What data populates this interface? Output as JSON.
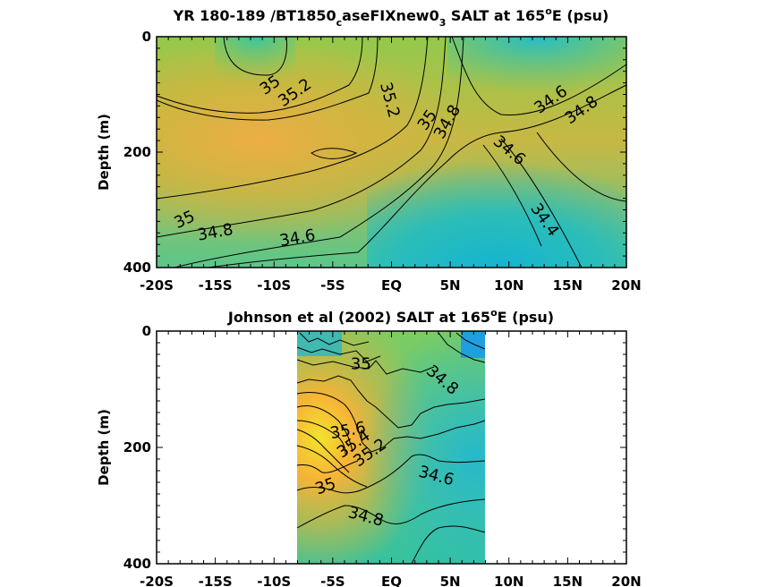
{
  "chart_data": [
    {
      "type": "contour",
      "title_main": "YR 180-189 /BT1850",
      "title_sub1": "c",
      "title_mid": "aseFIXnew0",
      "title_sub2": "3",
      "title_tail": " SALT at 165",
      "title_sup": "o",
      "title_end": "E (psu)",
      "ylabel": "Depth (m)",
      "x_ticks": [
        "-20S",
        "-15S",
        "-10S",
        "-5S",
        "EQ",
        "5N",
        "10N",
        "15N",
        "20N"
      ],
      "x_tick_values": [
        -20,
        -15,
        -10,
        -5,
        0,
        5,
        10,
        15,
        20
      ],
      "y_ticks": [
        "0",
        "200",
        "400"
      ],
      "y_tick_values": [
        0,
        200,
        400
      ],
      "xlim": [
        -20,
        20
      ],
      "ylim": [
        400,
        0
      ],
      "data_xrange": [
        -20,
        20
      ],
      "contour_labels": [
        {
          "text": "35",
          "x": -10.3,
          "y": 85,
          "angle": -35
        },
        {
          "text": "35.2",
          "x": -8.2,
          "y": 98,
          "angle": -35
        },
        {
          "text": "35.2",
          "x": -0.2,
          "y": 110,
          "angle": 75
        },
        {
          "text": "35",
          "x": 3.1,
          "y": 145,
          "angle": -55
        },
        {
          "text": "34.8",
          "x": 4.8,
          "y": 148,
          "angle": -60
        },
        {
          "text": "34.6",
          "x": 13.6,
          "y": 110,
          "angle": -35
        },
        {
          "text": "34.8",
          "x": 16.2,
          "y": 128,
          "angle": -35
        },
        {
          "text": "34.6",
          "x": 10.0,
          "y": 198,
          "angle": 40
        },
        {
          "text": "35",
          "x": -17.6,
          "y": 318,
          "angle": -25
        },
        {
          "text": "34.8",
          "x": -15.0,
          "y": 340,
          "angle": -10
        },
        {
          "text": "34.6",
          "x": -8.0,
          "y": 350,
          "angle": -10
        },
        {
          "text": "34.4",
          "x": 13.0,
          "y": 318,
          "angle": 55
        }
      ]
    },
    {
      "type": "contour",
      "title_main": "Johnson et al (2002) SALT at 165",
      "title_sup": "o",
      "title_end": "E (psu)",
      "ylabel": "Depth (m)",
      "x_ticks": [
        "-20S",
        "-15S",
        "-10S",
        "-5S",
        "EQ",
        "5N",
        "10N",
        "15N",
        "20N"
      ],
      "x_tick_values": [
        -20,
        -15,
        -10,
        -5,
        0,
        5,
        10,
        15,
        20
      ],
      "y_ticks": [
        "0",
        "200",
        "400"
      ],
      "y_tick_values": [
        0,
        200,
        400
      ],
      "xlim": [
        -20,
        20
      ],
      "ylim": [
        400,
        0
      ],
      "data_xrange": [
        -8,
        8
      ],
      "contour_labels": [
        {
          "text": "35",
          "x": -2.6,
          "y": 58,
          "angle": 0
        },
        {
          "text": "34.8",
          "x": 4.3,
          "y": 85,
          "angle": 40
        },
        {
          "text": "35.6",
          "x": -3.7,
          "y": 172,
          "angle": -10
        },
        {
          "text": "35.4",
          "x": -3.2,
          "y": 195,
          "angle": -35
        },
        {
          "text": "35.2",
          "x": -1.8,
          "y": 210,
          "angle": -35
        },
        {
          "text": "35",
          "x": -5.6,
          "y": 268,
          "angle": -20
        },
        {
          "text": "34.6",
          "x": 3.8,
          "y": 250,
          "angle": 15
        },
        {
          "text": "34.8",
          "x": -2.2,
          "y": 320,
          "angle": 15
        }
      ]
    }
  ]
}
